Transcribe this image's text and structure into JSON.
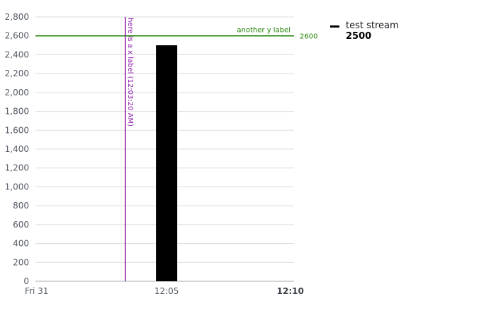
{
  "chart_data": {
    "type": "bar",
    "y_ticks": [
      0,
      200,
      400,
      600,
      800,
      1000,
      1200,
      1400,
      1600,
      1800,
      2000,
      2200,
      2400,
      2600,
      2800
    ],
    "y_tick_labels": [
      "0",
      "200",
      "400",
      "600",
      "800",
      "1,000",
      "1,200",
      "1,400",
      "1,600",
      "1,800",
      "2,000",
      "2,200",
      "2,400",
      "2,600",
      "2,800"
    ],
    "ylim": [
      0,
      2800
    ],
    "x_ticks": [
      {
        "label": "Fri 31",
        "bold": false
      },
      {
        "label": "12:05",
        "bold": false
      },
      {
        "label": "12:10",
        "bold": true
      }
    ],
    "series": [
      {
        "name": "test stream",
        "color": "#000000",
        "bars": [
          {
            "time": "12:05",
            "value": 2500
          }
        ]
      }
    ],
    "annotations": {
      "horizontal": {
        "label": "another y label",
        "value": 2600,
        "value_label": "2600",
        "color": "#1d8102"
      },
      "vertical": {
        "label": "here is a x label (12:03:20 AM)",
        "time": "12:03:20 AM",
        "color": "#8c1bab"
      }
    },
    "grid": true,
    "legend_position": "right"
  },
  "legend": {
    "name": "test stream",
    "value": "2500"
  }
}
